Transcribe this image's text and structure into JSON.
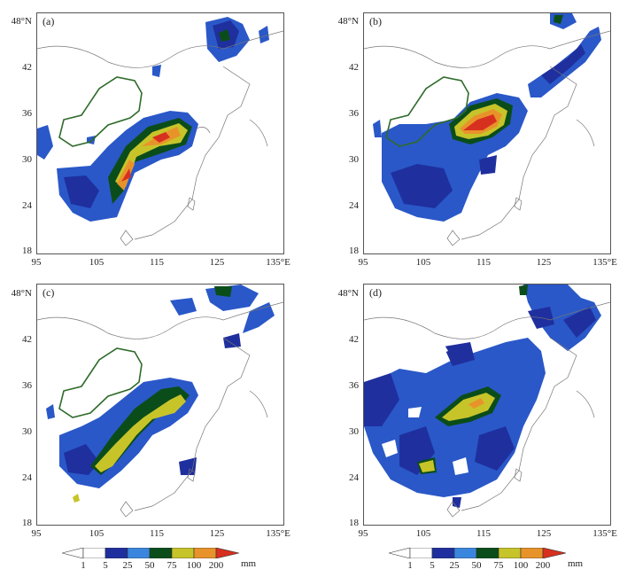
{
  "panels": [
    {
      "label": "(a)"
    },
    {
      "label": "(b)"
    },
    {
      "label": "(c)"
    },
    {
      "label": "(d)"
    }
  ],
  "lat_ticks": [
    "48°N",
    "42",
    "36",
    "30",
    "24",
    "18"
  ],
  "lon_ticks": [
    "95",
    "105",
    "115",
    "125",
    "135°E"
  ],
  "legend": {
    "levels": [
      "1",
      "5",
      "25",
      "50",
      "75",
      "100",
      "200"
    ],
    "unit": "mm",
    "colors": [
      "#ffffff",
      "#1f2f9e",
      "#3a86de",
      "#0b4d1a",
      "#c7c42a",
      "#e8932a",
      "#d7301f",
      "#e85c62"
    ]
  }
}
